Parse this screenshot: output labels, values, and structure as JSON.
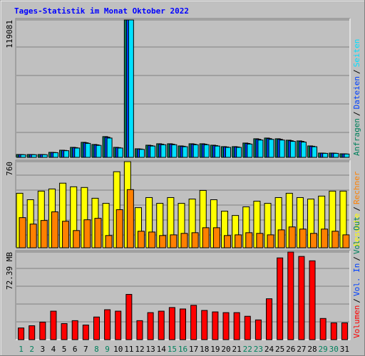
{
  "title": "Tages-Statistik im Monat Oktober 2022",
  "legend_separator": "/",
  "chart_data": [
    {
      "type": "bar",
      "series": [
        {
          "name": "Anfragen",
          "color": "#00805c",
          "values": [
            2480,
            2480,
            2480,
            4340,
            6200,
            8680,
            13020,
            11160,
            17980,
            8680,
            119081,
            7440,
            10540,
            11780,
            11780,
            9920,
            11780,
            11780,
            10540,
            9300,
            9300,
            12400,
            16120,
            16740,
            16120,
            14880,
            14260,
            9920,
            3720,
            3720,
            3100
          ]
        },
        {
          "name": "Dateien",
          "color": "#0040ff",
          "values": [
            2410,
            2410,
            2410,
            4210,
            6010,
            8420,
            12630,
            10830,
            17440,
            8420,
            119081,
            7220,
            10220,
            11430,
            11430,
            9620,
            11430,
            11430,
            10220,
            9020,
            9020,
            12030,
            15640,
            16240,
            15640,
            14430,
            13830,
            9620,
            3610,
            3610,
            3010
          ]
        },
        {
          "name": "Seiten",
          "color": "#00e0ff",
          "values": [
            2310,
            2310,
            2310,
            4040,
            5770,
            8070,
            12110,
            10380,
            16720,
            8070,
            119081,
            6920,
            9800,
            10960,
            10960,
            9230,
            10960,
            10960,
            9800,
            8650,
            8650,
            11530,
            14990,
            15570,
            14990,
            13840,
            13260,
            9230,
            3460,
            3460,
            2880
          ]
        }
      ],
      "ylim": [
        0,
        119081
      ],
      "yticks": [
        119081
      ]
    },
    {
      "type": "bar",
      "series": [
        {
          "name": "Besuche",
          "color": "#ffff00",
          "values": [
            481,
            424,
            500,
            519,
            570,
            538,
            532,
            437,
            392,
            671,
            760,
            354,
            443,
            392,
            443,
            392,
            430,
            506,
            424,
            323,
            285,
            361,
            411,
            392,
            443,
            481,
            443,
            430,
            456,
            500,
            500
          ]
        },
        {
          "name": "Rechner",
          "color": "#ff8000",
          "values": [
            266,
            209,
            241,
            317,
            234,
            152,
            247,
            260,
            108,
            336,
            513,
            146,
            139,
            108,
            114,
            127,
            133,
            177,
            177,
            108,
            114,
            133,
            127,
            114,
            158,
            184,
            165,
            127,
            165,
            146,
            114
          ]
        }
      ],
      "ylim": [
        0,
        760
      ],
      "yticks": [
        760
      ]
    },
    {
      "type": "bar",
      "categories": [
        "1",
        "2",
        "3",
        "4",
        "5",
        "6",
        "7",
        "8",
        "9",
        "10",
        "11",
        "12",
        "13",
        "14",
        "15",
        "16",
        "17",
        "18",
        "19",
        "20",
        "21",
        "22",
        "23",
        "24",
        "25",
        "26",
        "27",
        "28",
        "29",
        "30",
        "31"
      ],
      "category_colors": [
        "#00805c",
        "#00805c",
        "#000000",
        "#000000",
        "#000000",
        "#000000",
        "#000000",
        "#00805c",
        "#00805c",
        "#000000",
        "#000000",
        "#000000",
        "#000000",
        "#000000",
        "#00805c",
        "#00805c",
        "#000000",
        "#000000",
        "#000000",
        "#000000",
        "#000000",
        "#00805c",
        "#00805c",
        "#000000",
        "#000000",
        "#000000",
        "#000000",
        "#000000",
        "#00805c",
        "#00805c",
        "#000000"
      ],
      "series": [
        {
          "name": "Volumen",
          "color": "#ff0000",
          "values": [
            9.65,
            11.46,
            14.48,
            23.53,
            13.27,
            15.68,
            12.07,
            18.7,
            24.73,
            23.53,
            37.4,
            15.68,
            22.32,
            23.53,
            26.54,
            25.34,
            28.35,
            24.13,
            22.92,
            22.32,
            22.32,
            19.3,
            16.29,
            33.78,
            67.56,
            72.39,
            68.77,
            65.15,
            17.49,
            13.87,
            13.87
          ]
        },
        {
          "name": "Vol. In",
          "color": "#0040ff"
        },
        {
          "name": "Vol. Out",
          "color": "#00805c"
        }
      ],
      "ylim": [
        0,
        72.39
      ],
      "yticks": [
        {
          "value": 72.39,
          "label": "72.39 MB"
        }
      ]
    }
  ]
}
